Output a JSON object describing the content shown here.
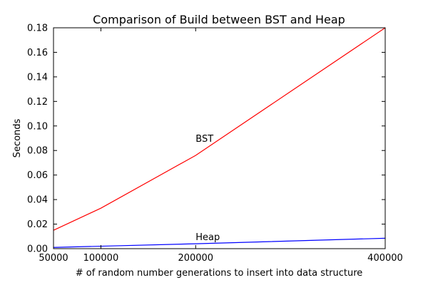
{
  "chart_data": {
    "type": "line",
    "title": "Comparison of Build between BST and Heap",
    "xlabel": "# of random number generations to insert into data structure",
    "ylabel": "Seconds",
    "xlim": [
      50000,
      400000
    ],
    "ylim": [
      0.0,
      0.18
    ],
    "xticks": [
      50000,
      100000,
      200000,
      400000
    ],
    "xtick_labels": [
      "50000",
      "100000",
      "200000",
      "400000"
    ],
    "yticks": [
      0.0,
      0.02,
      0.04,
      0.06,
      0.08,
      0.1,
      0.12,
      0.14,
      0.16,
      0.18
    ],
    "ytick_labels": [
      "0.00",
      "0.02",
      "0.04",
      "0.06",
      "0.08",
      "0.10",
      "0.12",
      "0.14",
      "0.16",
      "0.18"
    ],
    "grid": false,
    "legend": "none",
    "x": [
      50000,
      100000,
      200000,
      400000
    ],
    "series": [
      {
        "name": "BST",
        "color": "#ff0000",
        "values": [
          0.015,
          0.033,
          0.076,
          0.18
        ]
      },
      {
        "name": "Heap",
        "color": "#0000ff",
        "values": [
          0.001,
          0.002,
          0.004,
          0.0085
        ]
      }
    ],
    "annotations": [
      {
        "text": "BST",
        "x": 200000,
        "y": 0.09
      },
      {
        "text": "Heap",
        "x": 200000,
        "y": 0.01
      }
    ]
  }
}
